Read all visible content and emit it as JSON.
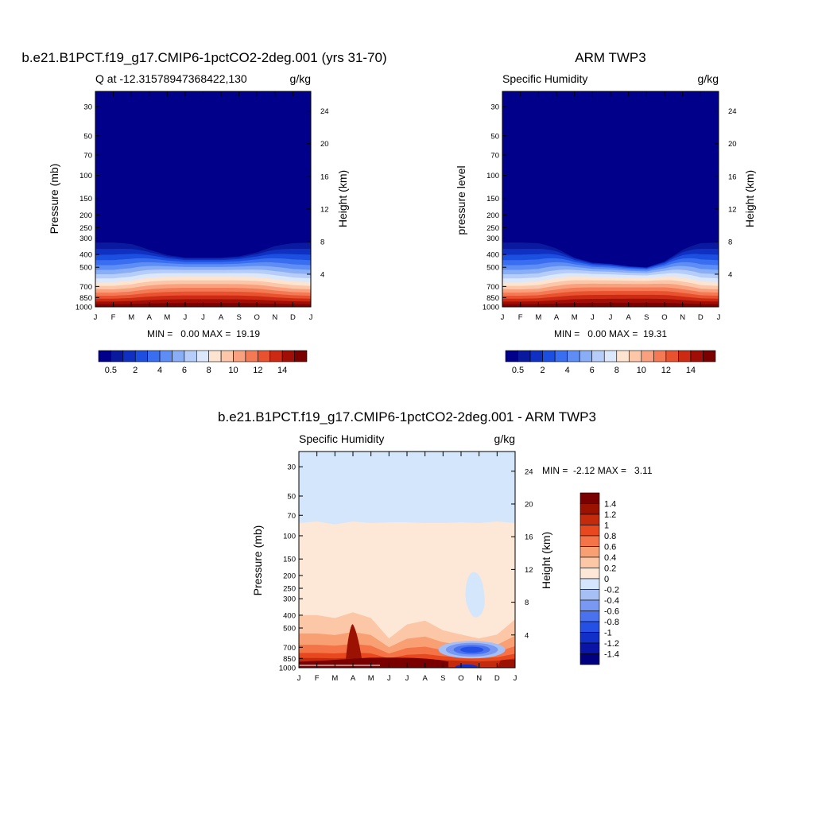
{
  "figure": {
    "panels": [
      {
        "title": "b.e21.B1PCT.f19_g17.CMIP6-1pctCO2-2deg.001 (yrs 31-70)",
        "left_label": "Q at -12.31578947368422,130",
        "right_label": "g/kg",
        "ylabel": "Pressure (mb)",
        "ylabel_right": "Height (km)",
        "minmax": "MIN =   0.00 MAX =  19.19"
      },
      {
        "title": "ARM TWP3",
        "left_label": "Specific Humidity",
        "right_label": "g/kg",
        "ylabel": "pressure level",
        "ylabel_right": "Height (km)",
        "minmax": "MIN =   0.00 MAX =  19.31"
      },
      {
        "title": "b.e21.B1PCT.f19_g17.CMIP6-1pctCO2-2deg.001 - ARM TWP3",
        "left_label": "Specific Humidity",
        "right_label": "g/kg",
        "ylabel": "Pressure (mb)",
        "ylabel_right": "Height (km)",
        "minmax": "MIN =  -2.12 MAX =   3.11"
      }
    ]
  },
  "chart_data": [
    {
      "type": "heatmap",
      "title": "b.e21.B1PCT.f19_g17.CMIP6-1pctCO2-2deg.001 (yrs 31-70)",
      "subtitle": "Q at -12.31578947368422,130",
      "units": "g/kg",
      "xlabel": "",
      "ylabel": "Pressure (mb)",
      "ylabel_right": "Height (km)",
      "x_ticks": [
        "J",
        "F",
        "M",
        "A",
        "M",
        "J",
        "J",
        "A",
        "S",
        "O",
        "N",
        "D",
        "J"
      ],
      "y_ticks": [
        30,
        50,
        70,
        100,
        150,
        200,
        250,
        300,
        400,
        500,
        700,
        850,
        1000
      ],
      "y_right_ticks": [
        4,
        8,
        12,
        16,
        20,
        24
      ],
      "y_axis_scale": "log-pressure",
      "ylim": [
        1000,
        23
      ],
      "colorbar_labels": [
        "0.5",
        "2",
        "4",
        "6",
        "8",
        "10",
        "12",
        "14"
      ],
      "minmax_text": "MIN =   0.00 MAX =  19.19",
      "min": 0.0,
      "max": 19.19,
      "moist_top_pressure_by_month": [
        290,
        290,
        310,
        360,
        400,
        420,
        420,
        420,
        410,
        380,
        330,
        300,
        290
      ]
    },
    {
      "type": "heatmap",
      "title": "ARM TWP3",
      "subtitle": "Specific Humidity",
      "units": "g/kg",
      "xlabel": "",
      "ylabel": "pressure level",
      "ylabel_right": "Height (km)",
      "x_ticks": [
        "J",
        "F",
        "M",
        "A",
        "M",
        "J",
        "J",
        "A",
        "S",
        "O",
        "N",
        "D",
        "J"
      ],
      "y_ticks": [
        30,
        50,
        70,
        100,
        150,
        200,
        250,
        300,
        400,
        500,
        700,
        850,
        1000
      ],
      "y_right_ticks": [
        4,
        8,
        12,
        16,
        20,
        24
      ],
      "y_axis_scale": "log-pressure",
      "ylim": [
        1000,
        23
      ],
      "colorbar_labels": [
        "0.5",
        "2",
        "4",
        "6",
        "8",
        "10",
        "12",
        "14"
      ],
      "minmax_text": "MIN =   0.00 MAX =  19.31",
      "min": 0.0,
      "max": 19.31,
      "moist_top_pressure_by_month": [
        290,
        290,
        300,
        350,
        420,
        460,
        470,
        490,
        500,
        450,
        360,
        300,
        290
      ]
    },
    {
      "type": "heatmap",
      "title": "b.e21.B1PCT.f19_g17.CMIP6-1pctCO2-2deg.001 - ARM TWP3",
      "subtitle": "Specific Humidity",
      "units": "g/kg",
      "xlabel": "",
      "ylabel": "Pressure (mb)",
      "ylabel_right": "Height (km)",
      "x_ticks": [
        "J",
        "F",
        "M",
        "A",
        "M",
        "J",
        "J",
        "A",
        "S",
        "O",
        "N",
        "D",
        "J"
      ],
      "y_ticks": [
        30,
        50,
        70,
        100,
        150,
        200,
        250,
        300,
        400,
        500,
        700,
        850,
        1000
      ],
      "y_right_ticks": [
        4,
        8,
        12,
        16,
        20,
        24
      ],
      "y_axis_scale": "log-pressure",
      "ylim": [
        1000,
        23
      ],
      "colorbar_labels": [
        "1.4",
        "1.2",
        "1",
        "0.8",
        "0.6",
        "0.4",
        "0.2",
        "0",
        "-0.2",
        "-0.4",
        "-0.6",
        "-0.8",
        "-1",
        "-1.2",
        "-1.4"
      ],
      "minmax_text": "MIN =  -2.12 MAX =   3.11",
      "min": -2.12,
      "max": 3.11
    }
  ],
  "colors": {
    "humidity_scale": [
      "#00008b",
      "#0a1a9e",
      "#0f30c0",
      "#1c4fe0",
      "#3a6ef0",
      "#5e8ef5",
      "#8aaef5",
      "#b5cdf8",
      "#dbe8fc",
      "#fde4d0",
      "#fcc6a8",
      "#f9a17e",
      "#f47a56",
      "#e8522f",
      "#cc2a12",
      "#a10e05",
      "#7b0000"
    ],
    "diff_scale": [
      "#000080",
      "#0a14a6",
      "#1230c8",
      "#2450e6",
      "#4a72ef",
      "#7898f2",
      "#a6c0f5",
      "#d3e6fb",
      "#fde7d6",
      "#fcc7a6",
      "#f99f74",
      "#f47448",
      "#e8481d",
      "#c42a0c",
      "#9c1202",
      "#7a0000"
    ]
  }
}
